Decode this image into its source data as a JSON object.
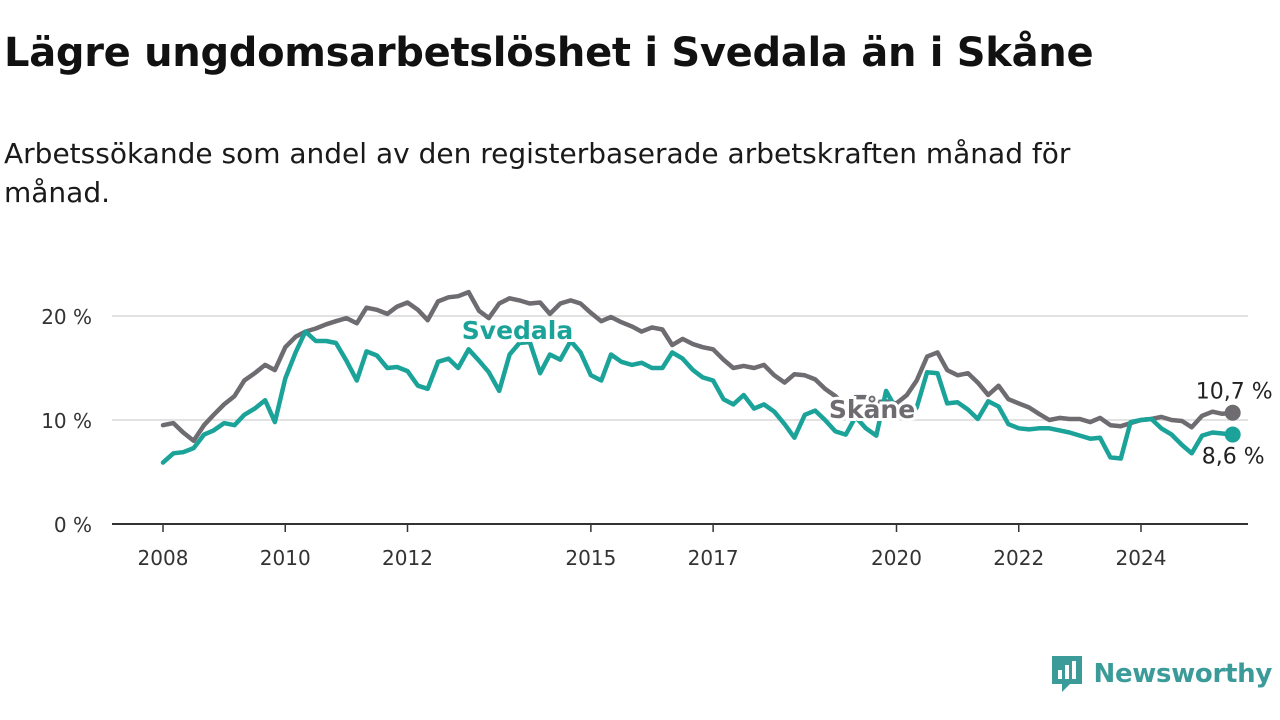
{
  "title": "Lägre ungdomsarbetslöshet i Svedala än i Skåne",
  "subtitle": "Arbetssökande som andel av den registerbaserade arbetskraften månad för månad.",
  "brand": {
    "name": "Newsworthy",
    "icon": "newsworthy-logo-icon",
    "color": "#3a9b98"
  },
  "chart_data": {
    "type": "line",
    "title": "Lägre ungdomsarbetslöshet i Svedala än i Skåne",
    "xlabel": "",
    "ylabel": "",
    "ylim": [
      0,
      20
    ],
    "xlim": [
      2008,
      2025.8
    ],
    "y_ticks": [
      0,
      10,
      20
    ],
    "y_tick_labels": [
      "0 %",
      "10 %",
      "20 %"
    ],
    "x_ticks": [
      2008,
      2010,
      2012,
      2015,
      2017,
      2020,
      2022,
      2024
    ],
    "x_tick_labels": [
      "2008",
      "2010",
      "2012",
      "2015",
      "2017",
      "2020",
      "2022",
      "2024"
    ],
    "grid": true,
    "series": [
      {
        "name": "Skåne",
        "color": "#6e6c70",
        "end_label": "10,7 %",
        "points": [
          [
            2008.0,
            9.5
          ],
          [
            2008.17,
            9.7
          ],
          [
            2008.33,
            8.8
          ],
          [
            2008.5,
            8.0
          ],
          [
            2008.67,
            9.5
          ],
          [
            2008.83,
            10.5
          ],
          [
            2009.0,
            11.5
          ],
          [
            2009.17,
            12.3
          ],
          [
            2009.33,
            13.8
          ],
          [
            2009.5,
            14.5
          ],
          [
            2009.67,
            15.3
          ],
          [
            2009.83,
            14.8
          ],
          [
            2010.0,
            17.0
          ],
          [
            2010.17,
            18.0
          ],
          [
            2010.33,
            18.5
          ],
          [
            2010.5,
            18.8
          ],
          [
            2010.67,
            19.2
          ],
          [
            2010.83,
            19.5
          ],
          [
            2011.0,
            19.8
          ],
          [
            2011.17,
            19.3
          ],
          [
            2011.33,
            20.8
          ],
          [
            2011.5,
            20.6
          ],
          [
            2011.67,
            20.2
          ],
          [
            2011.83,
            20.9
          ],
          [
            2012.0,
            21.3
          ],
          [
            2012.17,
            20.6
          ],
          [
            2012.33,
            19.6
          ],
          [
            2012.5,
            21.4
          ],
          [
            2012.67,
            21.8
          ],
          [
            2012.83,
            21.9
          ],
          [
            2013.0,
            22.3
          ],
          [
            2013.17,
            20.5
          ],
          [
            2013.33,
            19.8
          ],
          [
            2013.5,
            21.2
          ],
          [
            2013.67,
            21.7
          ],
          [
            2013.83,
            21.5
          ],
          [
            2014.0,
            21.2
          ],
          [
            2014.17,
            21.3
          ],
          [
            2014.33,
            20.2
          ],
          [
            2014.5,
            21.2
          ],
          [
            2014.67,
            21.5
          ],
          [
            2014.83,
            21.2
          ],
          [
            2015.0,
            20.3
          ],
          [
            2015.17,
            19.5
          ],
          [
            2015.33,
            19.9
          ],
          [
            2015.5,
            19.4
          ],
          [
            2015.67,
            19.0
          ],
          [
            2015.83,
            18.5
          ],
          [
            2016.0,
            18.9
          ],
          [
            2016.17,
            18.7
          ],
          [
            2016.33,
            17.2
          ],
          [
            2016.5,
            17.8
          ],
          [
            2016.67,
            17.3
          ],
          [
            2016.83,
            17.0
          ],
          [
            2017.0,
            16.8
          ],
          [
            2017.17,
            15.8
          ],
          [
            2017.33,
            15.0
          ],
          [
            2017.5,
            15.2
          ],
          [
            2017.67,
            15.0
          ],
          [
            2017.83,
            15.3
          ],
          [
            2018.0,
            14.3
          ],
          [
            2018.17,
            13.6
          ],
          [
            2018.33,
            14.4
          ],
          [
            2018.5,
            14.3
          ],
          [
            2018.67,
            13.9
          ],
          [
            2018.83,
            13.0
          ],
          [
            2019.0,
            12.3
          ],
          [
            2019.17,
            11.3
          ],
          [
            2019.33,
            12.2
          ],
          [
            2019.5,
            12.2
          ],
          [
            2019.67,
            11.7
          ],
          [
            2019.83,
            11.8
          ],
          [
            2020.0,
            11.6
          ],
          [
            2020.17,
            12.4
          ],
          [
            2020.33,
            13.8
          ],
          [
            2020.5,
            16.1
          ],
          [
            2020.67,
            16.5
          ],
          [
            2020.83,
            14.8
          ],
          [
            2021.0,
            14.3
          ],
          [
            2021.17,
            14.5
          ],
          [
            2021.33,
            13.6
          ],
          [
            2021.5,
            12.4
          ],
          [
            2021.67,
            13.3
          ],
          [
            2021.83,
            12.0
          ],
          [
            2022.0,
            11.6
          ],
          [
            2022.17,
            11.2
          ],
          [
            2022.33,
            10.6
          ],
          [
            2022.5,
            10.0
          ],
          [
            2022.67,
            10.2
          ],
          [
            2022.83,
            10.1
          ],
          [
            2023.0,
            10.1
          ],
          [
            2023.17,
            9.8
          ],
          [
            2023.33,
            10.2
          ],
          [
            2023.5,
            9.5
          ],
          [
            2023.67,
            9.4
          ],
          [
            2023.83,
            9.7
          ],
          [
            2024.0,
            10.0
          ],
          [
            2024.17,
            10.1
          ],
          [
            2024.33,
            10.3
          ],
          [
            2024.5,
            10.0
          ],
          [
            2024.67,
            9.9
          ],
          [
            2024.83,
            9.3
          ],
          [
            2025.0,
            10.4
          ],
          [
            2025.17,
            10.8
          ],
          [
            2025.33,
            10.6
          ],
          [
            2025.5,
            10.7
          ]
        ]
      },
      {
        "name": "Svedala",
        "color": "#1ba39a",
        "end_label": "8,6 %",
        "points": [
          [
            2008.0,
            5.9
          ],
          [
            2008.17,
            6.8
          ],
          [
            2008.33,
            6.9
          ],
          [
            2008.5,
            7.3
          ],
          [
            2008.67,
            8.6
          ],
          [
            2008.83,
            9.0
          ],
          [
            2009.0,
            9.7
          ],
          [
            2009.17,
            9.5
          ],
          [
            2009.33,
            10.5
          ],
          [
            2009.5,
            11.1
          ],
          [
            2009.67,
            11.9
          ],
          [
            2009.83,
            9.8
          ],
          [
            2010.0,
            14.0
          ],
          [
            2010.17,
            16.5
          ],
          [
            2010.33,
            18.5
          ],
          [
            2010.5,
            17.6
          ],
          [
            2010.67,
            17.6
          ],
          [
            2010.83,
            17.4
          ],
          [
            2011.0,
            15.7
          ],
          [
            2011.17,
            13.8
          ],
          [
            2011.33,
            16.6
          ],
          [
            2011.5,
            16.2
          ],
          [
            2011.67,
            15.0
          ],
          [
            2011.83,
            15.1
          ],
          [
            2012.0,
            14.7
          ],
          [
            2012.17,
            13.3
          ],
          [
            2012.33,
            13.0
          ],
          [
            2012.5,
            15.6
          ],
          [
            2012.67,
            15.9
          ],
          [
            2012.83,
            15.0
          ],
          [
            2013.0,
            16.8
          ],
          [
            2013.17,
            15.7
          ],
          [
            2013.33,
            14.6
          ],
          [
            2013.5,
            12.8
          ],
          [
            2013.67,
            16.3
          ],
          [
            2013.83,
            17.4
          ],
          [
            2014.0,
            17.5
          ],
          [
            2014.17,
            14.5
          ],
          [
            2014.33,
            16.3
          ],
          [
            2014.5,
            15.8
          ],
          [
            2014.67,
            17.6
          ],
          [
            2014.83,
            16.5
          ],
          [
            2015.0,
            14.3
          ],
          [
            2015.17,
            13.8
          ],
          [
            2015.33,
            16.3
          ],
          [
            2015.5,
            15.6
          ],
          [
            2015.67,
            15.3
          ],
          [
            2015.83,
            15.5
          ],
          [
            2016.0,
            15.0
          ],
          [
            2016.17,
            15.0
          ],
          [
            2016.33,
            16.5
          ],
          [
            2016.5,
            15.9
          ],
          [
            2016.67,
            14.8
          ],
          [
            2016.83,
            14.1
          ],
          [
            2017.0,
            13.8
          ],
          [
            2017.17,
            12.0
          ],
          [
            2017.33,
            11.5
          ],
          [
            2017.5,
            12.4
          ],
          [
            2017.67,
            11.1
          ],
          [
            2017.83,
            11.5
          ],
          [
            2018.0,
            10.8
          ],
          [
            2018.17,
            9.6
          ],
          [
            2018.33,
            8.3
          ],
          [
            2018.5,
            10.5
          ],
          [
            2018.67,
            10.9
          ],
          [
            2018.83,
            10.0
          ],
          [
            2019.0,
            8.9
          ],
          [
            2019.17,
            8.6
          ],
          [
            2019.33,
            10.3
          ],
          [
            2019.5,
            9.2
          ],
          [
            2019.67,
            8.5
          ],
          [
            2019.83,
            12.8
          ],
          [
            2020.0,
            11.0
          ],
          [
            2020.17,
            10.1
          ],
          [
            2020.33,
            11.2
          ],
          [
            2020.5,
            14.6
          ],
          [
            2020.67,
            14.5
          ],
          [
            2020.83,
            11.6
          ],
          [
            2021.0,
            11.7
          ],
          [
            2021.17,
            11.0
          ],
          [
            2021.33,
            10.1
          ],
          [
            2021.5,
            11.8
          ],
          [
            2021.67,
            11.3
          ],
          [
            2021.83,
            9.6
          ],
          [
            2022.0,
            9.2
          ],
          [
            2022.17,
            9.1
          ],
          [
            2022.33,
            9.2
          ],
          [
            2022.5,
            9.2
          ],
          [
            2022.67,
            9.0
          ],
          [
            2022.83,
            8.8
          ],
          [
            2023.0,
            8.5
          ],
          [
            2023.17,
            8.2
          ],
          [
            2023.33,
            8.3
          ],
          [
            2023.5,
            6.4
          ],
          [
            2023.67,
            6.3
          ],
          [
            2023.83,
            9.8
          ],
          [
            2024.0,
            10.0
          ],
          [
            2024.17,
            10.1
          ],
          [
            2024.33,
            9.2
          ],
          [
            2024.5,
            8.6
          ],
          [
            2024.67,
            7.6
          ],
          [
            2024.83,
            6.8
          ],
          [
            2025.0,
            8.5
          ],
          [
            2025.17,
            8.8
          ],
          [
            2025.33,
            8.7
          ],
          [
            2025.5,
            8.6
          ]
        ]
      }
    ],
    "series_labels": [
      {
        "text": "Svedala",
        "series": "Svedala",
        "at": [
          2013.8,
          17.8
        ]
      },
      {
        "text": "Skåne",
        "series": "Skåne",
        "at": [
          2019.6,
          10.2
        ]
      }
    ]
  }
}
